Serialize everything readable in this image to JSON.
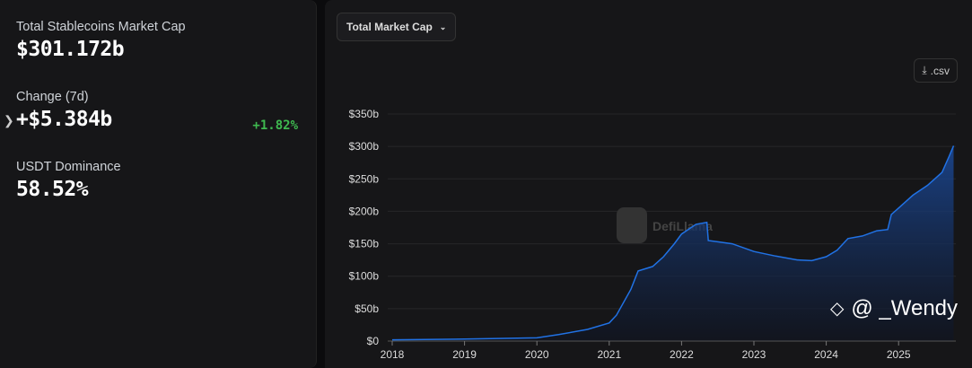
{
  "stats": {
    "total_label": "Total Stablecoins Market Cap",
    "total_value": "$301.172b",
    "change_label": "Change (7d)",
    "change_value": "+$5.384b",
    "change_pct": "+1.82%",
    "dominance_label": "USDT Dominance",
    "dominance_value": "58.52%"
  },
  "controls": {
    "dropdown": "Total Market Cap",
    "csv": ".csv"
  },
  "watermark": {
    "logo": "DefiLlama",
    "user": "@ _Wendy"
  },
  "colors": {
    "line": "#2172e5",
    "positive": "#3fb950"
  },
  "chart_data": {
    "type": "area",
    "title": "",
    "xlabel": "",
    "ylabel": "",
    "y_ticks": [
      "$0",
      "$50b",
      "$100b",
      "$150b",
      "$200b",
      "$250b",
      "$300b",
      "$350b"
    ],
    "x_ticks": [
      "2018",
      "2019",
      "2020",
      "2021",
      "2022",
      "2023",
      "2024",
      "2025"
    ],
    "ylim": [
      0,
      350
    ],
    "xlim": [
      2018,
      2025.8
    ],
    "grid": true,
    "x": [
      2018.0,
      2019.0,
      2020.0,
      2020.3,
      2020.7,
      2021.0,
      2021.1,
      2021.3,
      2021.4,
      2021.6,
      2021.75,
      2021.9,
      2022.0,
      2022.2,
      2022.35,
      2022.37,
      2022.5,
      2022.7,
      2023.0,
      2023.3,
      2023.6,
      2023.8,
      2024.0,
      2024.15,
      2024.3,
      2024.5,
      2024.7,
      2024.85,
      2024.9,
      2025.0,
      2025.2,
      2025.4,
      2025.6,
      2025.7,
      2025.76
    ],
    "values": [
      2,
      3,
      5,
      10,
      18,
      28,
      40,
      80,
      108,
      115,
      130,
      150,
      165,
      180,
      183,
      155,
      153,
      150,
      138,
      131,
      125,
      124,
      130,
      140,
      158,
      162,
      170,
      172,
      195,
      205,
      225,
      240,
      260,
      285,
      301
    ]
  }
}
